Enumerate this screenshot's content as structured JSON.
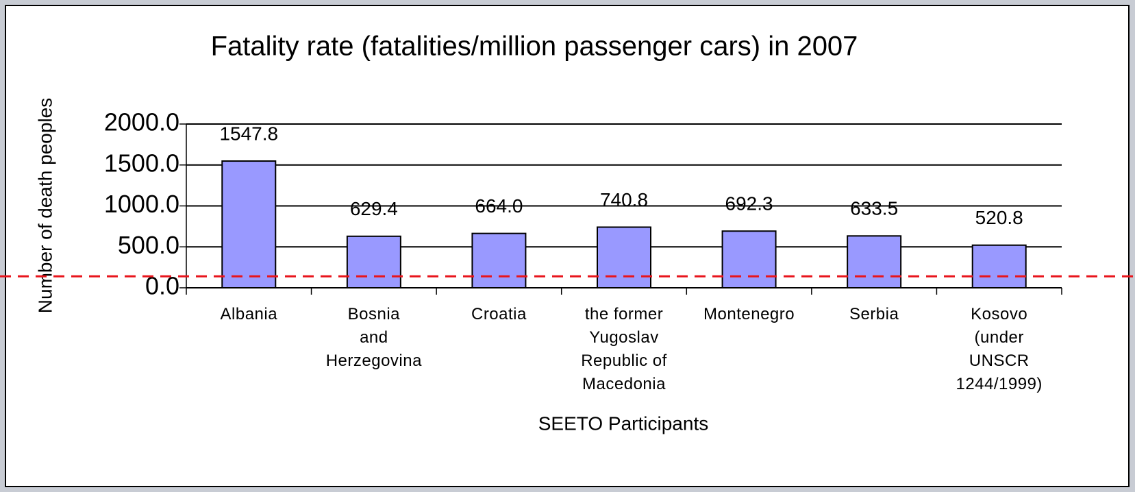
{
  "chart_data": {
    "type": "bar",
    "title": "Fatality rate (fatalities/million passenger cars) in 2007",
    "x_label": "SEETO Participants",
    "y_label": "Number of death peoples",
    "categories": [
      "Albania",
      "Bosnia\nand\nHerzegovina",
      "Croatia",
      "the former\nYugoslav\nRepublic of\nMacedonia",
      "Montenegro",
      "Serbia",
      "Kosovo\n(under\nUNSCR\n1244/1999)"
    ],
    "values": [
      1547.8,
      629.4,
      664.0,
      740.8,
      692.3,
      633.5,
      520.8
    ],
    "value_labels": [
      "1547.8",
      "629.4",
      "664.0",
      "740.8",
      "692.3",
      "633.5",
      "520.8"
    ],
    "color": "#9999ff",
    "ylim": [
      0,
      2000
    ],
    "yticks": [
      {
        "value": 0,
        "label": "0.0"
      },
      {
        "value": 500,
        "label": "500.0"
      },
      {
        "value": 1000,
        "label": "1000.0"
      },
      {
        "value": 1500,
        "label": "1500.0"
      },
      {
        "value": 2000,
        "label": "2000.0"
      }
    ],
    "grid": true,
    "reference_line": {
      "value": 140,
      "color": "#e8141b"
    }
  }
}
